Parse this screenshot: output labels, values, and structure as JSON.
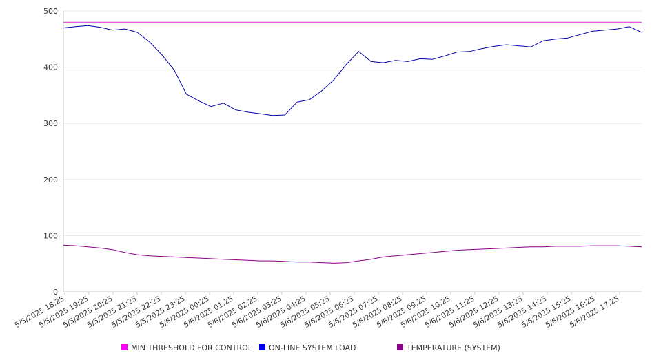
{
  "chart_data": {
    "type": "line",
    "title": "",
    "xlabel": "",
    "ylabel": "",
    "ylim": [
      0,
      500
    ],
    "yticks": [
      0,
      100,
      200,
      300,
      400,
      500
    ],
    "grid": "horizontal",
    "legend_position": "bottom",
    "x_tick_labels": [
      "5/5/2025 18:25",
      "5/5/2025 19:25",
      "5/5/2025 20:25",
      "5/5/2025 21:25",
      "5/5/2025 22:25",
      "5/5/2025 23:25",
      "5/6/2025 00:25",
      "5/6/2025 01:25",
      "5/6/2025 02:25",
      "5/6/2025 03:25",
      "5/6/2025 04:25",
      "5/6/2025 05:25",
      "5/6/2025 06:25",
      "5/6/2025 07:25",
      "5/6/2025 08:25",
      "5/6/2025 09:25",
      "5/6/2025 10:25",
      "5/6/2025 11:25",
      "5/6/2025 12:25",
      "5/6/2025 13:25",
      "5/6/2025 14:25",
      "5/6/2025 15:25",
      "5/6/2025 16:25",
      "5/6/2025 17:25"
    ],
    "x": [
      "5/5/2025 18:25",
      "5/5/2025 18:55",
      "5/5/2025 19:25",
      "5/5/2025 19:55",
      "5/5/2025 20:25",
      "5/5/2025 20:55",
      "5/5/2025 21:25",
      "5/5/2025 21:55",
      "5/5/2025 22:25",
      "5/5/2025 22:55",
      "5/5/2025 23:25",
      "5/5/2025 23:55",
      "5/6/2025 00:25",
      "5/6/2025 00:55",
      "5/6/2025 01:25",
      "5/6/2025 01:55",
      "5/6/2025 02:25",
      "5/6/2025 02:55",
      "5/6/2025 03:25",
      "5/6/2025 03:55",
      "5/6/2025 04:25",
      "5/6/2025 04:55",
      "5/6/2025 05:25",
      "5/6/2025 05:55",
      "5/6/2025 06:25",
      "5/6/2025 06:55",
      "5/6/2025 07:25",
      "5/6/2025 07:55",
      "5/6/2025 08:25",
      "5/6/2025 08:55",
      "5/6/2025 09:25",
      "5/6/2025 09:55",
      "5/6/2025 10:25",
      "5/6/2025 10:55",
      "5/6/2025 11:25",
      "5/6/2025 11:55",
      "5/6/2025 12:25",
      "5/6/2025 12:55",
      "5/6/2025 13:25",
      "5/6/2025 13:55",
      "5/6/2025 14:25",
      "5/6/2025 14:55",
      "5/6/2025 15:25",
      "5/6/2025 15:55",
      "5/6/2025 16:25",
      "5/6/2025 16:55",
      "5/6/2025 17:25",
      "5/6/2025 17:55"
    ],
    "series": [
      {
        "name": "MIN THRESHOLD FOR CONTROL",
        "color": "#dd22dd",
        "legend_color": "#ff00ff",
        "values": [
          480,
          480,
          480,
          480,
          480,
          480,
          480,
          480,
          480,
          480,
          480,
          480,
          480,
          480,
          480,
          480,
          480,
          480,
          480,
          480,
          480,
          480,
          480,
          480,
          480,
          480,
          480,
          480,
          480,
          480,
          480,
          480,
          480,
          480,
          480,
          480,
          480,
          480,
          480,
          480,
          480,
          480,
          480,
          480,
          480,
          480,
          480,
          480
        ]
      },
      {
        "name": "ON-LINE SYSTEM LOAD",
        "color": "#0000aa",
        "legend_color": "#0000ee",
        "values": [
          470,
          472,
          474,
          471,
          466,
          468,
          462,
          445,
          422,
          395,
          352,
          340,
          330,
          336,
          324,
          320,
          317,
          314,
          315,
          338,
          342,
          358,
          378,
          405,
          428,
          410,
          408,
          412,
          410,
          415,
          414,
          420,
          427,
          428,
          433,
          437,
          440,
          438,
          436,
          447,
          450,
          452,
          458,
          464,
          466,
          468,
          472,
          462
        ]
      },
      {
        "name": "TEMPERATURE (SYSTEM)",
        "color": "#880088",
        "legend_color": "#880088",
        "values": [
          83,
          82,
          80,
          78,
          75,
          70,
          66,
          64,
          63,
          62,
          61,
          60,
          59,
          58,
          57,
          56,
          55,
          55,
          54,
          53,
          53,
          52,
          51,
          52,
          55,
          58,
          62,
          64,
          66,
          68,
          70,
          72,
          74,
          75,
          76,
          77,
          78,
          79,
          80,
          80,
          81,
          81,
          81,
          82,
          82,
          82,
          81,
          80
        ]
      }
    ]
  }
}
